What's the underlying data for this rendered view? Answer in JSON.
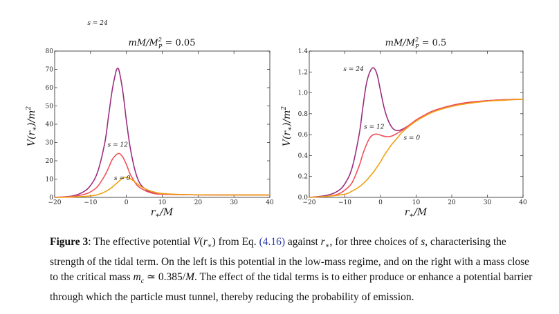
{
  "chart_data": [
    {
      "type": "line",
      "title": "mM/M_P^2 = 0.05",
      "title_parts": {
        "a": "mM/M",
        "sub": "P",
        "sup": "2",
        "b": " = 0.05"
      },
      "xlabel": "r*/M",
      "ylabel": "V(r*)/m^2",
      "xlim": [
        -20,
        40
      ],
      "ylim": [
        0,
        80
      ],
      "xticks": [
        "−20",
        "−10",
        "0",
        "10",
        "20",
        "30",
        "40"
      ],
      "yticks": [
        "0",
        "10",
        "20",
        "30",
        "40",
        "50",
        "60",
        "70",
        "80"
      ],
      "series": [
        {
          "name": "s = 24",
          "color": "#9b2d7f",
          "asymptote": 1.3,
          "x": [
            -20,
            -15,
            -12,
            -10,
            -8,
            -6,
            -5,
            -4,
            -3,
            -2.5,
            -2,
            -1,
            0,
            1,
            2,
            3,
            4,
            6,
            8,
            10,
            12,
            15,
            20,
            30,
            40
          ],
          "y": [
            0,
            0.8,
            3,
            6.5,
            14,
            30,
            44,
            58,
            68,
            70.5,
            69,
            58,
            42,
            28,
            18,
            11,
            7,
            3.5,
            2.2,
            1.8,
            1.6,
            1.5,
            1.4,
            1.3,
            1.3
          ]
        },
        {
          "name": "s = 12",
          "color": "#f0505a",
          "asymptote": 1.3,
          "x": [
            -20,
            -15,
            -12,
            -10,
            -8,
            -6,
            -5,
            -4,
            -3,
            -2,
            -1,
            0,
            1,
            2,
            3,
            4,
            6,
            8,
            10,
            15,
            20,
            30,
            40
          ],
          "y": [
            0,
            0.5,
            1.5,
            3,
            6,
            12,
            16,
            20.5,
            23,
            24,
            22,
            18,
            13,
            9.5,
            6.5,
            5,
            3,
            2,
            1.7,
            1.5,
            1.4,
            1.3,
            1.3
          ]
        },
        {
          "name": "s = 0",
          "color": "#f2a014",
          "asymptote": 1.3,
          "x": [
            -20,
            -15,
            -10,
            -8,
            -6,
            -4,
            -2,
            -1,
            0,
            1,
            2,
            3,
            4,
            6,
            8,
            10,
            15,
            20,
            30,
            40
          ],
          "y": [
            0,
            0.2,
            0.8,
            1.5,
            3,
            5.5,
            9,
            10.5,
            11,
            10.3,
            9,
            7.5,
            6,
            4,
            2.8,
            2.1,
            1.6,
            1.4,
            1.3,
            1.3
          ]
        }
      ]
    },
    {
      "type": "line",
      "title": "mM/M_P^2 = 0.5",
      "title_parts": {
        "a": "mM/M",
        "sub": "P",
        "sup": "2",
        "b": " = 0.5"
      },
      "xlabel": "r*/M",
      "ylabel": "V(r*)/m^2",
      "xlim": [
        -20,
        40
      ],
      "ylim": [
        0,
        1.4
      ],
      "xticks": [
        "−20",
        "−10",
        "0",
        "10",
        "20",
        "30",
        "40"
      ],
      "yticks": [
        "0.0",
        "0.2",
        "0.4",
        "0.6",
        "0.8",
        "1.0",
        "1.2",
        "1.4"
      ],
      "series": [
        {
          "name": "s = 24",
          "color": "#9b2d7f",
          "asymptote": 0.94,
          "x": [
            -20,
            -15,
            -12,
            -10,
            -8,
            -6,
            -5,
            -4,
            -3,
            -2,
            -1,
            0,
            1,
            2,
            3,
            4,
            5,
            6,
            8,
            10,
            12,
            15,
            20,
            25,
            30,
            35,
            40
          ],
          "y": [
            0,
            0.02,
            0.06,
            0.13,
            0.28,
            0.6,
            0.85,
            1.08,
            1.2,
            1.24,
            1.18,
            1.02,
            0.86,
            0.75,
            0.68,
            0.645,
            0.64,
            0.65,
            0.69,
            0.74,
            0.78,
            0.83,
            0.88,
            0.91,
            0.925,
            0.935,
            0.94
          ]
        },
        {
          "name": "s = 12",
          "color": "#f0505a",
          "asymptote": 0.94,
          "x": [
            -20,
            -15,
            -12,
            -10,
            -8,
            -6,
            -5,
            -4,
            -3,
            -2,
            -1,
            0,
            1,
            2,
            3,
            4,
            5,
            6,
            8,
            10,
            12,
            15,
            20,
            25,
            30,
            35,
            40
          ],
          "y": [
            0,
            0.01,
            0.03,
            0.07,
            0.14,
            0.3,
            0.41,
            0.5,
            0.57,
            0.6,
            0.605,
            0.595,
            0.585,
            0.58,
            0.585,
            0.6,
            0.62,
            0.64,
            0.69,
            0.74,
            0.78,
            0.83,
            0.88,
            0.91,
            0.925,
            0.935,
            0.94
          ]
        },
        {
          "name": "s = 0",
          "color": "#f2a014",
          "asymptote": 0.94,
          "x": [
            -20,
            -15,
            -10,
            -8,
            -6,
            -4,
            -3,
            -2,
            -1,
            0,
            1,
            2,
            3,
            4,
            5,
            6,
            8,
            10,
            12,
            15,
            20,
            25,
            30,
            35,
            40
          ],
          "y": [
            0,
            0.01,
            0.03,
            0.06,
            0.1,
            0.16,
            0.2,
            0.24,
            0.29,
            0.34,
            0.4,
            0.45,
            0.5,
            0.54,
            0.58,
            0.62,
            0.68,
            0.73,
            0.77,
            0.82,
            0.87,
            0.9,
            0.92,
            0.93,
            0.94
          ]
        }
      ]
    }
  ],
  "caption": {
    "figure_label": "Figure 3",
    "seg1": ": The effective potential ",
    "math_V": "V",
    "math_rstar_open": "(r",
    "math_star": "∗",
    "math_close": ")",
    "seg2": " from Eq. ",
    "eq_ref": "(4.16)",
    "seg3": " against ",
    "math_r": "r",
    "math_star2": "∗",
    "seg4": ", for three choices of ",
    "math_s": "s",
    "seg5": ", characterising the strength of the tidal term. On the left is this potential in the low-mass regime, and on the right with a mass close to the critical mass ",
    "math_mc": "m",
    "math_mc_sub": "c",
    "seg6": " ≃ 0.385/",
    "math_M": "M",
    "seg7": ". The effect of the tidal terms is to either produce or enhance a potential barrier through which the particle must tunnel, thereby reducing the probability of emission."
  }
}
